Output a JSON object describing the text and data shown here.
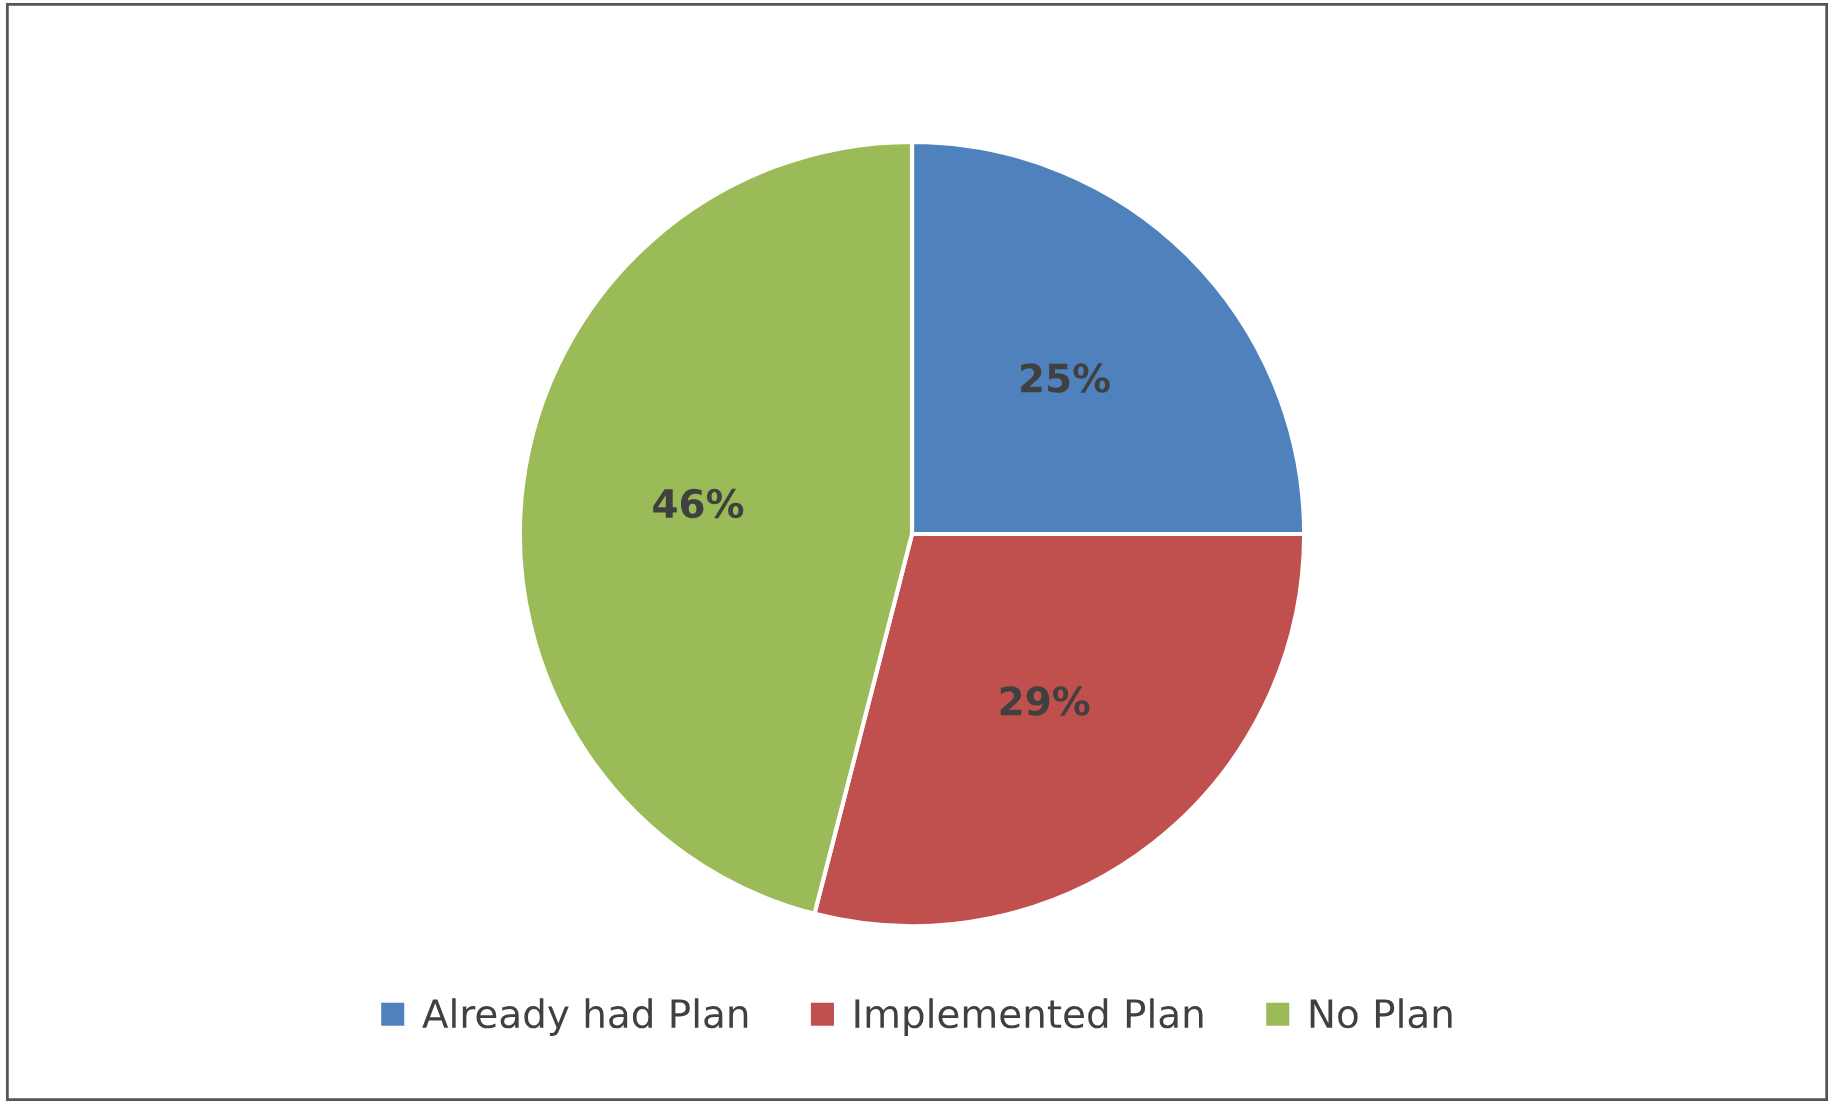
{
  "chart_data": {
    "type": "pie",
    "categories": [
      "Already had Plan",
      "Implemented Plan",
      "No Plan"
    ],
    "values": [
      25,
      29,
      46
    ],
    "colors": [
      "#4f81bd",
      "#c0504d",
      "#9bbb59"
    ],
    "value_labels": [
      "25%",
      "29%",
      "46%"
    ],
    "legend": "bottom"
  }
}
